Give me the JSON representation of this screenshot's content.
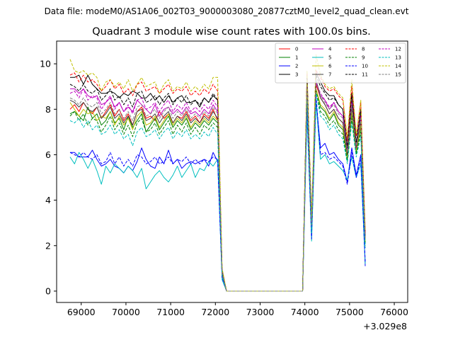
{
  "suptitle": "Data file: modeM0/AS1A06_002T03_9000003080_20877cztM0_level2_quad_clean.evt",
  "chart_data": {
    "type": "line",
    "title": "Quadrant 3 module wise count rates with 100.0s bins.",
    "xlabel": "",
    "ylabel": "",
    "x_offset_label": "+3.029e8",
    "xlim": [
      68450,
      76300
    ],
    "ylim": [
      -0.5,
      11.0
    ],
    "xticks": [
      69000,
      70000,
      71000,
      72000,
      73000,
      74000,
      75000,
      76000
    ],
    "xtick_labels": [
      "69000",
      "70000",
      "71000",
      "72000",
      "73000",
      "74000",
      "75000",
      "76000"
    ],
    "yticks": [
      0,
      2,
      4,
      6,
      8,
      10
    ],
    "ytick_labels": [
      "0",
      "2",
      "4",
      "6",
      "8",
      "10"
    ],
    "grid": false,
    "legend_position": "top-right",
    "legend_columns": 4,
    "x": {
      "start": 68750,
      "step": 100,
      "count": 73
    },
    "gap": {
      "from": 72150,
      "to": 73950,
      "value": 0
    },
    "series": [
      {
        "name": "0",
        "color": "#ff0000",
        "dash": "solid",
        "values": [
          8.0,
          8.2,
          7.9,
          8.3,
          8.0,
          7.8,
          8.1,
          7.6,
          7.9,
          8.2,
          7.7,
          8.0,
          7.5,
          7.8,
          7.3,
          7.9,
          8.1,
          7.6,
          7.7,
          7.5,
          7.9,
          7.6,
          7.8,
          7.4,
          7.7,
          7.6,
          7.9,
          7.5,
          7.7,
          7.4,
          7.8,
          7.6,
          8.0,
          7.5,
          0.8,
          0,
          8.9,
          2.9,
          9.1,
          8.5,
          8.2,
          7.8,
          8.0,
          7.6,
          7.4,
          6.0,
          8.1,
          6.3,
          7.5,
          2.3
        ]
      },
      {
        "name": "1",
        "color": "#008000",
        "dash": "solid",
        "values": [
          7.8,
          7.9,
          7.7,
          7.5,
          8.1,
          7.6,
          7.8,
          7.3,
          7.5,
          7.9,
          7.4,
          7.6,
          7.1,
          7.7,
          7.2,
          7.5,
          7.8,
          7.0,
          7.3,
          7.6,
          7.1,
          7.4,
          7.7,
          7.2,
          7.5,
          7.3,
          7.6,
          7.1,
          7.4,
          7.2,
          7.5,
          7.3,
          7.6,
          7.4,
          0.7,
          0,
          8.6,
          2.7,
          8.9,
          8.1,
          7.9,
          7.5,
          7.8,
          7.3,
          7.1,
          5.8,
          7.8,
          6.1,
          7.2,
          2.1
        ]
      },
      {
        "name": "2",
        "color": "#0000ff",
        "dash": "solid",
        "values": [
          6.1,
          6.1,
          5.9,
          5.9,
          5.9,
          6.2,
          5.8,
          5.5,
          5.6,
          5.8,
          5.5,
          5.4,
          5.2,
          5.5,
          5.3,
          5.7,
          6.3,
          5.8,
          5.5,
          5.4,
          5.9,
          5.6,
          6.2,
          5.6,
          5.8,
          5.4,
          5.6,
          5.7,
          5.6,
          5.7,
          5.8,
          5.5,
          6.1,
          5.7,
          0.6,
          0,
          8.0,
          2.4,
          8.4,
          6.3,
          6.5,
          6.0,
          6.1,
          5.8,
          5.6,
          4.8,
          6.3,
          5.1,
          6.0,
          1.1
        ]
      },
      {
        "name": "3",
        "color": "#000000",
        "dash": "solid",
        "values": [
          9.4,
          9.4,
          9.5,
          9.1,
          9.5,
          9.1,
          8.9,
          8.7,
          8.7,
          8.8,
          8.7,
          8.5,
          8.7,
          8.6,
          8.8,
          8.7,
          8.5,
          8.5,
          8.7,
          8.4,
          8.6,
          8.3,
          8.6,
          8.3,
          8.5,
          8.6,
          8.3,
          8.3,
          8.4,
          8.1,
          8.5,
          8.3,
          8.6,
          8.4,
          0.9,
          0,
          9.5,
          3.1,
          9.6,
          9.2,
          8.8,
          8.6,
          8.6,
          8.2,
          8.0,
          6.3,
          8.7,
          6.5,
          8.0,
          2.4
        ]
      },
      {
        "name": "4",
        "color": "#bf00bf",
        "dash": "solid",
        "values": [
          8.9,
          8.9,
          8.7,
          8.9,
          8.6,
          8.5,
          8.6,
          8.2,
          8.3,
          8.5,
          8.1,
          8.3,
          7.9,
          8.1,
          7.9,
          8.4,
          8.2,
          8.0,
          7.8,
          8.2,
          7.7,
          8.0,
          8.1,
          7.8,
          8.0,
          7.8,
          8.1,
          7.8,
          7.9,
          7.7,
          8.0,
          7.8,
          8.2,
          7.9,
          0.8,
          0,
          9.1,
          2.9,
          9.2,
          8.6,
          8.4,
          8.0,
          8.3,
          7.9,
          7.7,
          6.0,
          8.3,
          6.3,
          7.7,
          2.3
        ]
      },
      {
        "name": "5",
        "color": "#00bfbf",
        "dash": "solid",
        "values": [
          5.9,
          5.6,
          6.1,
          5.8,
          5.4,
          5.8,
          5.3,
          4.7,
          5.5,
          5.2,
          5.6,
          5.4,
          5.2,
          5.5,
          5.3,
          5.0,
          5.4,
          4.5,
          4.8,
          5.1,
          5.3,
          5.0,
          4.8,
          5.1,
          5.5,
          5.0,
          5.3,
          5.6,
          5.0,
          5.4,
          5.3,
          5.7,
          5.5,
          5.8,
          0.5,
          0,
          7.8,
          2.2,
          8.3,
          5.8,
          6.0,
          5.6,
          5.7,
          5.5,
          5.3,
          4.9,
          5.9,
          5.0,
          5.6,
          1.2
        ]
      },
      {
        "name": "6",
        "color": "#bfbf00",
        "dash": "solid",
        "values": [
          8.3,
          8.0,
          7.7,
          8.0,
          7.8,
          7.9,
          7.5,
          7.7,
          7.6,
          7.9,
          7.3,
          7.7,
          7.3,
          7.6,
          7.1,
          7.7,
          7.9,
          7.3,
          7.4,
          7.7,
          7.2,
          7.5,
          7.8,
          7.3,
          7.6,
          7.4,
          7.7,
          7.2,
          7.5,
          7.3,
          7.6,
          7.4,
          7.7,
          7.5,
          0.7,
          0,
          8.7,
          2.8,
          8.9,
          8.2,
          8.0,
          7.6,
          7.9,
          7.4,
          7.2,
          5.9,
          7.9,
          6.2,
          7.3,
          2.2
        ]
      },
      {
        "name": "7",
        "color": "#404040",
        "dash": "solid",
        "values": [
          8.4,
          8.3,
          8.1,
          8.3,
          8.0,
          7.9,
          8.1,
          7.6,
          7.8,
          8.1,
          7.6,
          7.8,
          7.4,
          7.7,
          7.3,
          7.9,
          8.0,
          7.5,
          7.6,
          7.8,
          7.4,
          7.7,
          7.9,
          7.4,
          7.7,
          7.5,
          7.8,
          7.4,
          7.6,
          7.4,
          7.7,
          7.5,
          7.9,
          7.6,
          0.8,
          0,
          9.2,
          2.9,
          9.3,
          8.5,
          8.2,
          7.8,
          8.0,
          7.6,
          7.4,
          6.0,
          8.1,
          6.3,
          7.5,
          2.3
        ]
      },
      {
        "name": "8",
        "color": "#ff0000",
        "dash": "dashed",
        "values": [
          9.5,
          9.6,
          9.2,
          9.5,
          9.2,
          9.3,
          9.1,
          8.8,
          9.0,
          9.3,
          8.9,
          9.1,
          8.7,
          8.9,
          8.6,
          9.1,
          9.2,
          8.8,
          8.9,
          9.0,
          8.7,
          8.9,
          9.1,
          8.7,
          8.9,
          8.8,
          9.0,
          8.6,
          8.8,
          8.6,
          8.9,
          8.7,
          9.1,
          8.8,
          0.9,
          0,
          9.6,
          3.1,
          9.7,
          9.4,
          9.0,
          8.8,
          8.9,
          8.6,
          8.4,
          6.6,
          9.0,
          6.8,
          8.3,
          2.6
        ]
      },
      {
        "name": "9",
        "color": "#008000",
        "dash": "dashed",
        "values": [
          7.7,
          7.9,
          7.5,
          7.8,
          7.3,
          7.6,
          7.5,
          7.0,
          7.3,
          7.7,
          7.1,
          7.4,
          6.9,
          7.3,
          6.8,
          7.4,
          7.6,
          7.0,
          7.1,
          7.4,
          6.9,
          7.2,
          7.5,
          6.9,
          7.3,
          7.0,
          7.4,
          6.9,
          7.2,
          6.9,
          7.3,
          7.1,
          7.4,
          7.2,
          0.7,
          0,
          8.5,
          2.6,
          8.8,
          7.9,
          7.7,
          7.3,
          7.5,
          7.1,
          6.9,
          5.7,
          7.6,
          6.0,
          7.0,
          2.0
        ]
      },
      {
        "name": "10",
        "color": "#0000ff",
        "dash": "dashed",
        "values": [
          6.1,
          6.0,
          5.9,
          6.1,
          5.9,
          5.8,
          6.0,
          5.6,
          5.7,
          6.1,
          5.6,
          5.9,
          5.5,
          5.8,
          5.5,
          6.0,
          5.9,
          5.6,
          5.7,
          5.9,
          5.6,
          5.7,
          5.9,
          5.6,
          5.8,
          5.7,
          5.9,
          5.6,
          5.8,
          5.6,
          5.8,
          5.7,
          5.9,
          5.8,
          0.6,
          0,
          8.1,
          2.3,
          8.6,
          6.0,
          6.1,
          5.8,
          5.9,
          5.7,
          5.5,
          4.7,
          6.1,
          5.0,
          5.8,
          1.3
        ]
      },
      {
        "name": "11",
        "color": "#000000",
        "dash": "dashed",
        "values": [
          9.1,
          9.0,
          8.8,
          9.1,
          8.8,
          8.7,
          8.9,
          8.4,
          8.6,
          8.9,
          8.4,
          8.6,
          8.2,
          8.5,
          8.1,
          8.7,
          8.8,
          8.3,
          8.4,
          8.6,
          8.2,
          8.5,
          8.7,
          8.2,
          8.5,
          8.3,
          8.6,
          8.2,
          8.4,
          8.2,
          8.5,
          8.3,
          8.7,
          8.4,
          0.9,
          0,
          9.4,
          3.0,
          9.5,
          9.0,
          8.7,
          8.4,
          8.5,
          8.2,
          8.0,
          6.3,
          8.6,
          6.5,
          7.9,
          2.4
        ]
      },
      {
        "name": "12",
        "color": "#bf00bf",
        "dash": "dashed",
        "values": [
          8.7,
          8.8,
          8.5,
          8.9,
          8.4,
          8.6,
          8.5,
          8.0,
          8.3,
          8.6,
          8.0,
          8.3,
          7.9,
          8.2,
          7.8,
          8.4,
          8.5,
          8.0,
          8.1,
          8.3,
          7.9,
          8.2,
          8.4,
          7.9,
          8.2,
          8.0,
          8.3,
          7.9,
          8.1,
          7.9,
          8.2,
          8.0,
          8.4,
          8.1,
          0.8,
          0,
          9.0,
          2.9,
          9.2,
          8.7,
          8.4,
          8.1,
          8.3,
          7.9,
          7.7,
          6.1,
          8.3,
          6.3,
          7.7,
          2.3
        ]
      },
      {
        "name": "13",
        "color": "#00bfbf",
        "dash": "dashed",
        "values": [
          7.5,
          7.4,
          7.6,
          7.2,
          7.5,
          7.1,
          7.3,
          6.9,
          7.0,
          7.3,
          6.9,
          7.1,
          6.7,
          6.9,
          6.4,
          7.0,
          7.2,
          6.8,
          6.9,
          7.1,
          6.7,
          7.0,
          7.2,
          6.7,
          7.0,
          6.8,
          7.1,
          6.7,
          6.9,
          6.7,
          7.0,
          6.8,
          7.2,
          6.9,
          0.7,
          0,
          8.4,
          2.6,
          8.7,
          7.7,
          7.5,
          7.1,
          7.3,
          6.9,
          6.7,
          5.6,
          7.4,
          5.9,
          6.8,
          1.9
        ]
      },
      {
        "name": "14",
        "color": "#bfbf00",
        "dash": "dashed",
        "values": [
          10.2,
          9.7,
          9.6,
          9.7,
          9.5,
          9.6,
          9.4,
          8.8,
          9.2,
          9.3,
          9.0,
          9.2,
          8.9,
          9.3,
          8.8,
          9.1,
          9.4,
          9.0,
          9.1,
          9.2,
          8.7,
          9.1,
          9.3,
          8.8,
          9.0,
          8.9,
          9.2,
          8.8,
          9.0,
          8.8,
          9.1,
          8.9,
          9.4,
          9.4,
          1.0,
          0,
          9.7,
          3.2,
          10.4,
          9.5,
          9.1,
          8.9,
          9.0,
          8.7,
          8.5,
          6.8,
          9.3,
          6.9,
          8.4,
          2.7
        ]
      },
      {
        "name": "15",
        "color": "#808080",
        "dash": "dashed",
        "values": [
          8.5,
          8.4,
          8.2,
          8.5,
          8.2,
          8.1,
          8.3,
          7.8,
          8.0,
          8.3,
          7.8,
          8.0,
          7.6,
          7.9,
          7.5,
          8.1,
          8.2,
          7.7,
          7.8,
          8.0,
          7.6,
          7.9,
          8.1,
          7.6,
          7.9,
          7.7,
          8.0,
          7.6,
          7.8,
          7.6,
          7.9,
          7.7,
          8.1,
          7.8,
          0.8,
          0,
          9.1,
          2.9,
          9.3,
          8.6,
          8.3,
          8.0,
          8.2,
          7.8,
          7.6,
          6.1,
          8.2,
          6.4,
          7.6,
          2.3
        ]
      }
    ]
  }
}
